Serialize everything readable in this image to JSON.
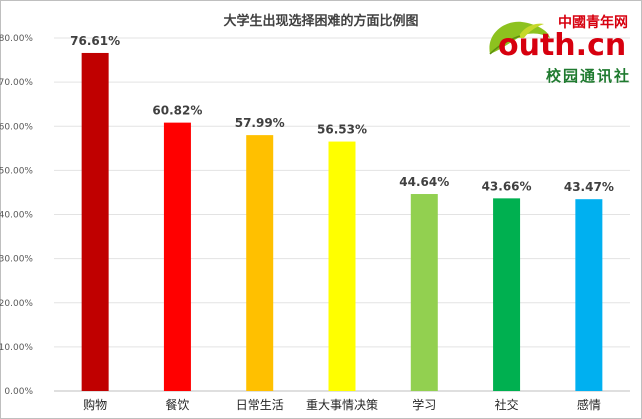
{
  "chart_data": {
    "type": "bar",
    "title": "大学生出现选择困难的方面比例图",
    "categories": [
      "购物",
      "餐饮",
      "日常生活",
      "重大事情决策",
      "学习",
      "社交",
      "感情"
    ],
    "values": [
      76.61,
      60.82,
      57.99,
      56.53,
      44.64,
      43.66,
      43.47
    ],
    "value_labels": [
      "76.61%",
      "60.82%",
      "57.99%",
      "56.53%",
      "44.64%",
      "43.66%",
      "43.47%"
    ],
    "colors": [
      "#c00000",
      "#ff0000",
      "#ffc000",
      "#ffff00",
      "#92d050",
      "#00b050",
      "#00b0f0"
    ],
    "ylim": [
      0,
      80
    ],
    "yticks": [
      "0.00%",
      "10.00%",
      "20.00%",
      "30.00%",
      "40.00%",
      "50.00%",
      "60.00%",
      "70.00%",
      "80.00%"
    ],
    "grid": true,
    "legend": "none",
    "xlabel": "",
    "ylabel": ""
  },
  "watermark": {
    "brand_cn": "中國青年网",
    "brand_en": "outh.cn",
    "subtitle": "校园通讯社",
    "colors": {
      "red": "#d7000f",
      "green": "#1f7a2f",
      "leaf": "#8dc21f"
    }
  }
}
